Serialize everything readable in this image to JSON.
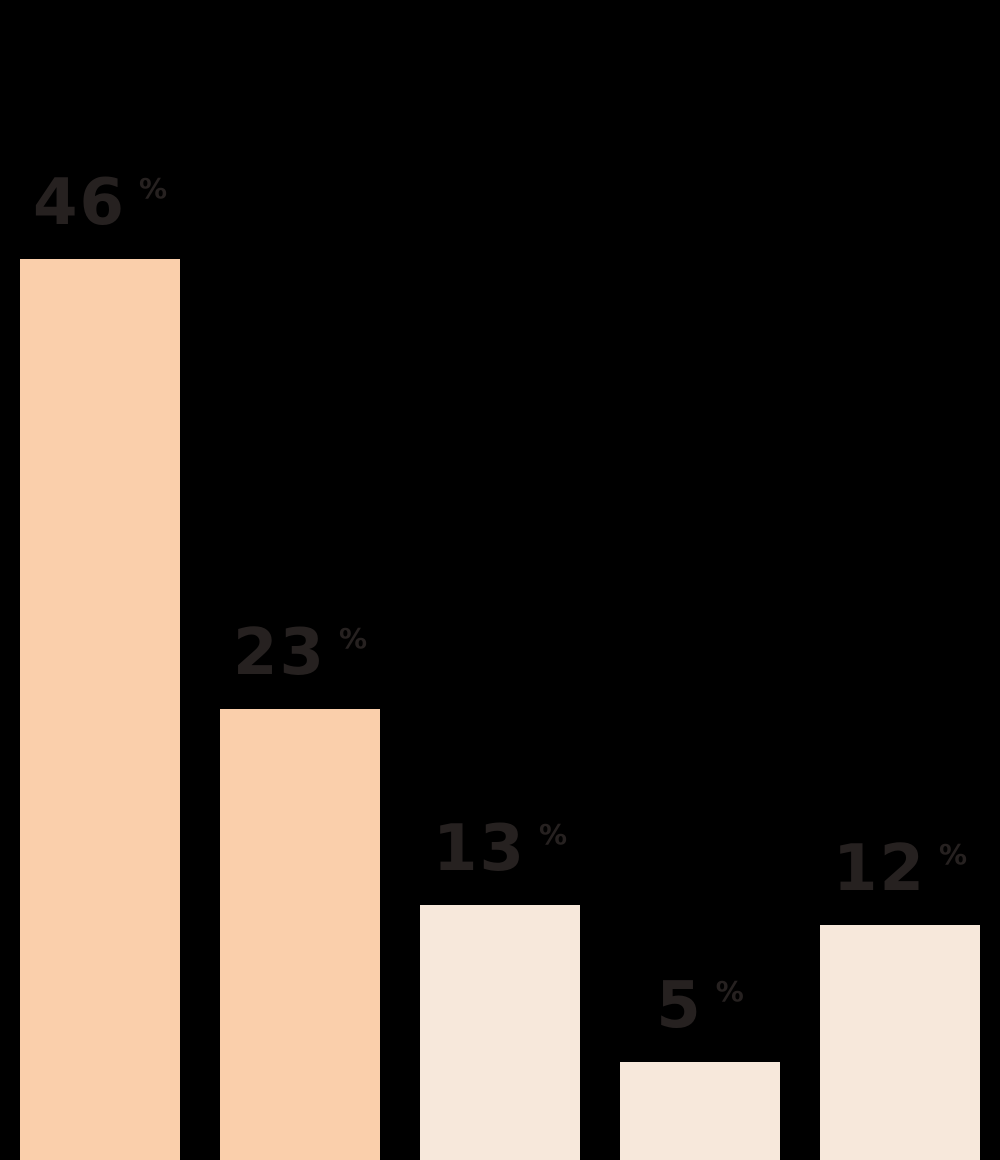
{
  "chart_data": {
    "type": "bar",
    "title": "",
    "xlabel": "",
    "ylabel": "",
    "unit": "%",
    "values": [
      46,
      23,
      13,
      5,
      12
    ],
    "ylim": [
      0,
      46
    ],
    "grid": false,
    "legend": "none",
    "axes_visible": false,
    "background_color": "#000000",
    "label_text_color": "#262120",
    "bars": [
      {
        "value": 46,
        "value_label": "46",
        "unit": "%",
        "color": "#facfab"
      },
      {
        "value": 23,
        "value_label": "23",
        "unit": "%",
        "color": "#facfab"
      },
      {
        "value": 13,
        "value_label": "13",
        "unit": "%",
        "color": "#f7e8db"
      },
      {
        "value": 5,
        "value_label": "5",
        "unit": "%",
        "color": "#f7e8db"
      },
      {
        "value": 12,
        "value_label": "12",
        "unit": "%",
        "color": "#f7e8db"
      }
    ]
  }
}
